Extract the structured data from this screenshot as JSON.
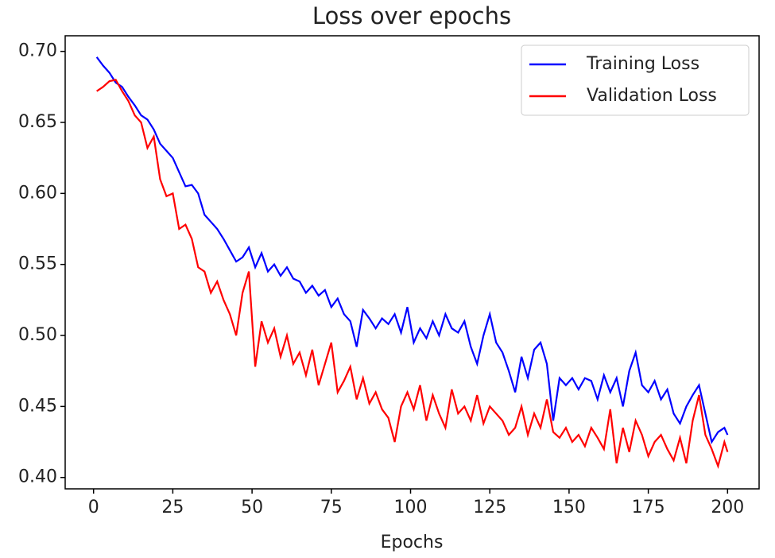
{
  "chart_data": {
    "type": "line",
    "title": "Loss over epochs",
    "xlabel": "Epochs",
    "x": [
      1,
      3,
      5,
      7,
      9,
      11,
      13,
      15,
      17,
      19,
      21,
      23,
      25,
      27,
      29,
      31,
      33,
      35,
      37,
      39,
      41,
      43,
      45,
      47,
      49,
      51,
      53,
      55,
      57,
      59,
      61,
      63,
      65,
      67,
      69,
      71,
      73,
      75,
      77,
      79,
      81,
      83,
      85,
      87,
      89,
      91,
      93,
      95,
      97,
      99,
      101,
      103,
      105,
      107,
      109,
      111,
      113,
      115,
      117,
      119,
      121,
      123,
      125,
      127,
      129,
      131,
      133,
      135,
      137,
      139,
      141,
      143,
      145,
      147,
      149,
      151,
      153,
      155,
      157,
      159,
      161,
      163,
      165,
      167,
      169,
      171,
      173,
      175,
      177,
      179,
      181,
      183,
      185,
      187,
      189,
      191,
      193,
      195,
      197,
      199,
      200
    ],
    "series": [
      {
        "name": "Training Loss",
        "color": "#0000ff",
        "values": [
          0.696,
          0.69,
          0.685,
          0.678,
          0.675,
          0.668,
          0.662,
          0.655,
          0.652,
          0.645,
          0.635,
          0.63,
          0.625,
          0.615,
          0.605,
          0.606,
          0.6,
          0.585,
          0.58,
          0.575,
          0.568,
          0.56,
          0.552,
          0.555,
          0.562,
          0.548,
          0.558,
          0.545,
          0.55,
          0.542,
          0.548,
          0.54,
          0.538,
          0.53,
          0.535,
          0.528,
          0.532,
          0.52,
          0.526,
          0.515,
          0.51,
          0.492,
          0.518,
          0.512,
          0.505,
          0.512,
          0.508,
          0.515,
          0.502,
          0.52,
          0.495,
          0.505,
          0.498,
          0.51,
          0.5,
          0.515,
          0.505,
          0.502,
          0.51,
          0.492,
          0.48,
          0.5,
          0.515,
          0.495,
          0.488,
          0.475,
          0.46,
          0.485,
          0.47,
          0.49,
          0.495,
          0.48,
          0.44,
          0.47,
          0.465,
          0.47,
          0.462,
          0.47,
          0.468,
          0.455,
          0.472,
          0.46,
          0.47,
          0.45,
          0.475,
          0.488,
          0.465,
          0.46,
          0.468,
          0.455,
          0.462,
          0.445,
          0.438,
          0.45,
          0.458,
          0.465,
          0.445,
          0.425,
          0.432,
          0.435,
          0.43
        ]
      },
      {
        "name": "Validation Loss",
        "color": "#ff0000",
        "values": [
          0.672,
          0.675,
          0.679,
          0.68,
          0.672,
          0.665,
          0.655,
          0.65,
          0.632,
          0.64,
          0.61,
          0.598,
          0.6,
          0.575,
          0.578,
          0.568,
          0.548,
          0.545,
          0.53,
          0.538,
          0.525,
          0.515,
          0.5,
          0.53,
          0.545,
          0.478,
          0.51,
          0.495,
          0.505,
          0.485,
          0.5,
          0.48,
          0.488,
          0.472,
          0.49,
          0.465,
          0.48,
          0.495,
          0.46,
          0.468,
          0.478,
          0.455,
          0.47,
          0.452,
          0.46,
          0.448,
          0.442,
          0.425,
          0.45,
          0.46,
          0.448,
          0.465,
          0.44,
          0.458,
          0.445,
          0.435,
          0.462,
          0.445,
          0.45,
          0.44,
          0.458,
          0.438,
          0.45,
          0.445,
          0.44,
          0.43,
          0.435,
          0.45,
          0.43,
          0.445,
          0.435,
          0.455,
          0.432,
          0.428,
          0.435,
          0.425,
          0.43,
          0.422,
          0.435,
          0.428,
          0.42,
          0.448,
          0.41,
          0.435,
          0.418,
          0.44,
          0.43,
          0.415,
          0.425,
          0.43,
          0.42,
          0.412,
          0.428,
          0.41,
          0.44,
          0.458,
          0.43,
          0.42,
          0.408,
          0.425,
          0.418
        ]
      }
    ],
    "xlim": [
      -8.95,
      209.95
    ],
    "xticks": [
      0,
      25,
      50,
      75,
      100,
      125,
      150,
      175,
      200
    ],
    "ylim": [
      0.392,
      0.711
    ],
    "yticks": [
      {
        "value": 0.4,
        "label": "0.40"
      },
      0.45,
      {
        "value": 0.5,
        "label": "0.50"
      },
      0.55,
      {
        "value": 0.6,
        "label": "0.60"
      },
      0.65,
      {
        "value": 0.7,
        "label": "0.70"
      }
    ],
    "grid": false,
    "legend": "upper right"
  }
}
